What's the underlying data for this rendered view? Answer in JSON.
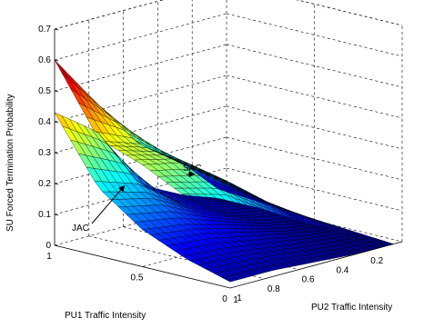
{
  "chart_data": {
    "type": "surface",
    "title": "",
    "xlabel": "PU1 Traffic Intensity",
    "ylabel": "PU2 Traffic Intensity",
    "zlabel": "SU Forced Termination Probability",
    "x_ticks": [
      "0",
      "0.5",
      "1"
    ],
    "y_ticks": [
      "0.2",
      "0.4",
      "0.6",
      "0.8",
      "1"
    ],
    "z_ticks": [
      "0",
      "0.1",
      "0.2",
      "0.3",
      "0.4",
      "0.5",
      "0.6",
      "0.7"
    ],
    "xlim": [
      0,
      1
    ],
    "ylim": [
      0,
      1
    ],
    "zlim": [
      0,
      0.7
    ],
    "grid": true,
    "colormap": "jet",
    "series": [
      {
        "name": "SAC",
        "x": [
          0,
          0.25,
          0.5,
          0.75,
          1
        ],
        "y": [
          0.05,
          0.25,
          0.5,
          0.75,
          1
        ],
        "z": [
          [
            0.0,
            0.01,
            0.02,
            0.03,
            0.04
          ],
          [
            0.02,
            0.05,
            0.09,
            0.12,
            0.15
          ],
          [
            0.05,
            0.13,
            0.2,
            0.23,
            0.25
          ],
          [
            0.09,
            0.22,
            0.3,
            0.33,
            0.42
          ],
          [
            0.11,
            0.26,
            0.33,
            0.38,
            0.6
          ]
        ]
      },
      {
        "name": "JAC",
        "x": [
          0,
          0.25,
          0.5,
          0.75,
          1
        ],
        "y": [
          0.05,
          0.25,
          0.5,
          0.75,
          1
        ],
        "z": [
          [
            0.0,
            0.0,
            0.0,
            0.01,
            0.01
          ],
          [
            0.0,
            0.01,
            0.02,
            0.03,
            0.05
          ],
          [
            0.01,
            0.03,
            0.06,
            0.09,
            0.12
          ],
          [
            0.02,
            0.05,
            0.1,
            0.18,
            0.33
          ],
          [
            0.02,
            0.06,
            0.12,
            0.22,
            0.43
          ]
        ]
      }
    ],
    "annotations": [
      {
        "text": "SAC",
        "target": "SAC"
      },
      {
        "text": "JAC",
        "target": "JAC"
      }
    ]
  }
}
